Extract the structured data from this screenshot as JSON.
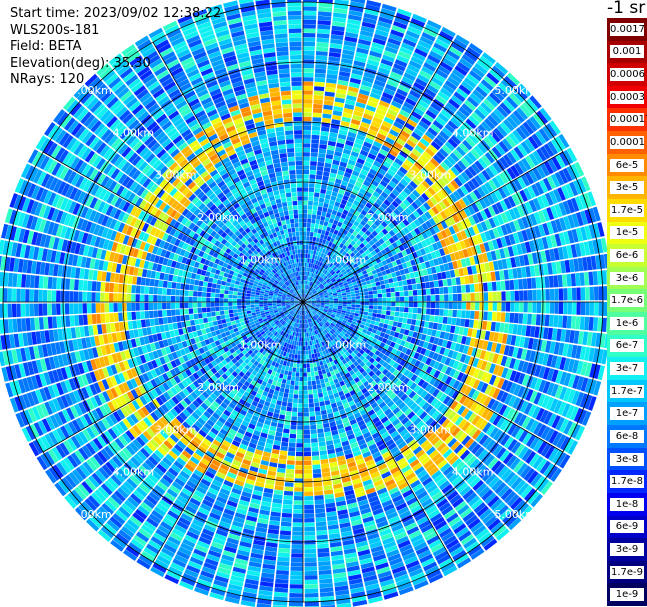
{
  "info": {
    "start_time": "Start time: 2023/09/02 12:38:22",
    "instrument": "WLS200s-181",
    "field": "Field: BETA",
    "elevation": "Elevation(deg): 35.30",
    "nrays": "NRays: 120"
  },
  "colorbar": {
    "title": "-1 sr",
    "labels": [
      "0.0017",
      "0.001",
      "0.0006",
      "0.0003",
      "0.00017",
      "0.0001",
      "6e-5",
      "3e-5",
      "1.7e-5",
      "1e-5",
      "6e-6",
      "3e-6",
      "1.7e-6",
      "1e-6",
      "6e-7",
      "3e-7",
      "1.7e-7",
      "1e-7",
      "6e-8",
      "3e-8",
      "1.7e-8",
      "1e-8",
      "6e-9",
      "3e-9",
      "1.7e-9",
      "1e-9"
    ],
    "colors": [
      "#800000",
      "#a80000",
      "#d00000",
      "#f00000",
      "#ff3000",
      "#ff6000",
      "#ff8c00",
      "#ffb400",
      "#ffdc00",
      "#f0ff10",
      "#c8ff30",
      "#a0ff50",
      "#78ff78",
      "#50ffa0",
      "#30ffc8",
      "#10f0f0",
      "#00c8ff",
      "#00a0ff",
      "#0078ff",
      "#0050ff",
      "#0028ff",
      "#0000f0",
      "#0000c8",
      "#0000a0",
      "#000080",
      "#000060"
    ]
  },
  "chart_data": {
    "type": "heatmap",
    "projection": "polar (plan position indicator)",
    "field": "BETA",
    "instrument": "WLS200s-181",
    "start_time": "2023/09/02 12:38:22",
    "elevation_deg": 35.3,
    "n_rays": 120,
    "range_rings_km": [
      1.0,
      2.0,
      3.0,
      4.0,
      5.0
    ],
    "range_ring_labels": [
      "1.00km",
      "2.00km",
      "3.00km",
      "4.00km",
      "5.00km"
    ],
    "azimuth_spokes_deg": [
      0,
      30,
      60,
      90,
      120,
      150,
      180,
      210,
      240,
      270,
      300,
      330
    ],
    "max_range_km": 5.0,
    "colorbar_title": "-1 sr",
    "color_scale": "log",
    "color_range": [
      1e-09,
      0.0017
    ],
    "colorbar_ticks": [
      "0.0017",
      "0.001",
      "0.0006",
      "0.0003",
      "0.00017",
      "0.0001",
      "6e-5",
      "3e-5",
      "1.7e-5",
      "1e-5",
      "6e-6",
      "3e-6",
      "1.7e-6",
      "1e-6",
      "6e-7",
      "3e-7",
      "1.7e-7",
      "1e-7",
      "6e-8",
      "3e-8",
      "1.7e-8",
      "1e-8",
      "6e-9",
      "3e-9",
      "1.7e-9",
      "1e-9"
    ],
    "background_level": 1e-07,
    "features": [
      {
        "description": "enhanced backscatter ring (aerosol layer)",
        "range_km": [
          2.8,
          3.4
        ],
        "value": 1e-05
      },
      {
        "description": "ring peak values",
        "value": 3e-05
      }
    ]
  }
}
